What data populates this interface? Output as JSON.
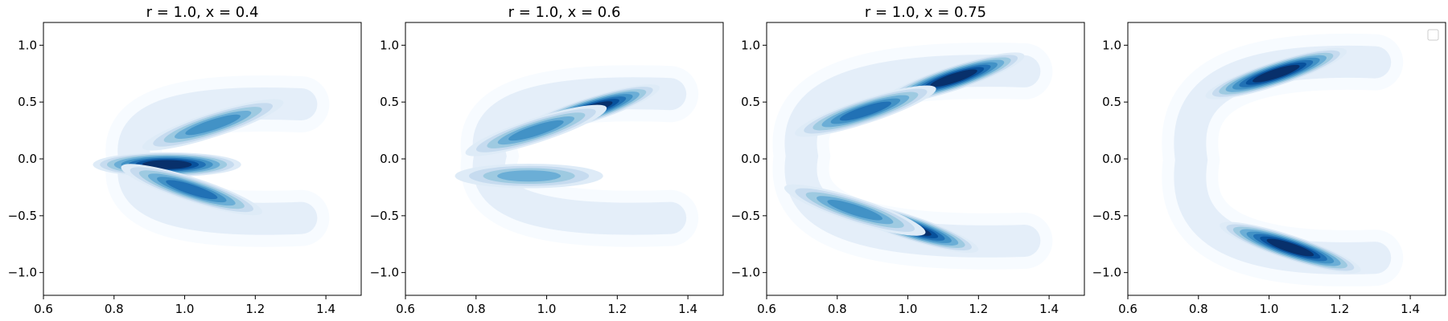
{
  "chart_data": [
    {
      "type": "contour",
      "title": "r = 1.0, x = 0.4",
      "xlim": [
        0.6,
        1.5
      ],
      "ylim": [
        -1.2,
        1.2
      ],
      "xticks": [
        "0.6",
        "0.8",
        "1.0",
        "1.2",
        "1.4"
      ],
      "yticks": [
        "1.0",
        "0.5",
        "0.0",
        "−0.5",
        "−1.0"
      ],
      "colormap": "Blues",
      "density_modes": [
        {
          "x": 0.95,
          "y": -0.05,
          "weight": 1.0
        },
        {
          "x": 1.02,
          "y": -0.27,
          "weight": 0.55
        },
        {
          "x": 1.08,
          "y": 0.3,
          "weight": 0.3
        }
      ],
      "support_shape": "crescent opening right",
      "support_extent": {
        "x": [
          0.82,
          1.33
        ],
        "y": [
          -0.57,
          0.53
        ]
      }
    },
    {
      "type": "contour",
      "title": "r = 1.0, x = 0.6",
      "xlim": [
        0.6,
        1.5
      ],
      "ylim": [
        -1.2,
        1.2
      ],
      "xticks": [
        "0.6",
        "0.8",
        "1.0",
        "1.2",
        "1.4"
      ],
      "yticks": [
        "1.0",
        "0.5",
        "0.0",
        "−0.5",
        "−1.0"
      ],
      "colormap": "Blues",
      "density_modes": [
        {
          "x": 1.12,
          "y": 0.43,
          "weight": 1.0
        },
        {
          "x": 0.97,
          "y": 0.25,
          "weight": 0.45
        },
        {
          "x": 0.95,
          "y": -0.15,
          "weight": 0.25
        }
      ],
      "support_shape": "crescent opening right",
      "support_extent": {
        "x": [
          0.8,
          1.35
        ],
        "y": [
          -0.57,
          0.62
        ]
      }
    },
    {
      "type": "contour",
      "title": "r = 1.0, x = 0.75",
      "xlim": [
        0.6,
        1.5
      ],
      "ylim": [
        -1.2,
        1.2
      ],
      "xticks": [
        "0.6",
        "0.8",
        "1.0",
        "1.2",
        "1.4"
      ],
      "yticks": [
        "1.0",
        "0.5",
        "0.0",
        "−0.5",
        "−1.0"
      ],
      "colormap": "Blues",
      "density_modes": [
        {
          "x": 1.13,
          "y": 0.71,
          "weight": 1.0
        },
        {
          "x": 0.88,
          "y": 0.42,
          "weight": 0.5
        },
        {
          "x": 1.0,
          "y": -0.6,
          "weight": 1.0
        },
        {
          "x": 0.85,
          "y": -0.45,
          "weight": 0.45
        }
      ],
      "support_shape": "C shape opening right",
      "support_extent": {
        "x": [
          0.66,
          1.33
        ],
        "y": [
          -0.77,
          0.82
        ]
      }
    },
    {
      "type": "contour",
      "title": "",
      "xlim": [
        0.6,
        1.5
      ],
      "ylim": [
        -1.2,
        1.2
      ],
      "xticks": [
        "0.6",
        "0.8",
        "1.0",
        "1.2",
        "1.4"
      ],
      "yticks": [
        "1.0",
        "0.5",
        "0.0",
        "−0.5",
        "−1.0"
      ],
      "colormap": "Blues",
      "legend": {
        "placement": "top-right",
        "entries": []
      },
      "density_modes": [
        {
          "x": 1.02,
          "y": 0.75,
          "weight": 1.0
        },
        {
          "x": 1.06,
          "y": -0.78,
          "weight": 1.0
        }
      ],
      "support_shape": "C shape opening right",
      "support_extent": {
        "x": [
          0.74,
          1.3
        ],
        "y": [
          -0.92,
          0.9
        ]
      }
    }
  ],
  "colors": {
    "levels": [
      "#f7fbff",
      "#deebf7",
      "#c6dbef",
      "#9ecae1",
      "#6baed6",
      "#4292c6",
      "#2171b5",
      "#08519c",
      "#08306b"
    ],
    "axis": "#000000",
    "background": "#ffffff"
  }
}
